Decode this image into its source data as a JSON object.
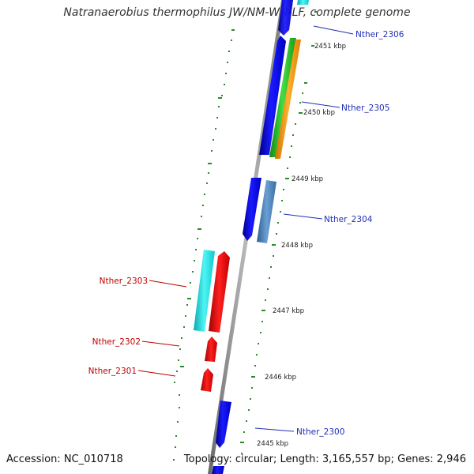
{
  "title": "Natranaerobius thermophilus JW/NM-WN-LF, complete genome",
  "accession": "Accession: NC_010718",
  "summary": "Topology: circular; Length: 3,165,557 bp; Genes: 2,946",
  "colors": {
    "backbone": "#888888",
    "dashes": "#2a8a2a",
    "blue_gene": "#1010ee",
    "cyan_gene": "#22dddd",
    "red_gene": "#ee1010",
    "steel_gene": "#4a7fb5",
    "green_gene": "#22bb22",
    "orange_gene": "#ff9900",
    "label_right": "#1f2fb5",
    "label_left": "#c00000"
  },
  "kbp_labels": [
    "2451 kbp",
    "2450 kbp",
    "2449 kbp",
    "2448 kbp",
    "2447 kbp",
    "2446 kbp",
    "2445 kbp"
  ],
  "gene_labels": {
    "Nther_2306": "Nther_2306",
    "Nther_2305": "Nther_2305",
    "Nther_2304": "Nther_2304",
    "Nther_2303": "Nther_2303",
    "Nther_2302": "Nther_2302",
    "Nther_2301": "Nther_2301",
    "Nther_2300": "Nther_2300"
  }
}
